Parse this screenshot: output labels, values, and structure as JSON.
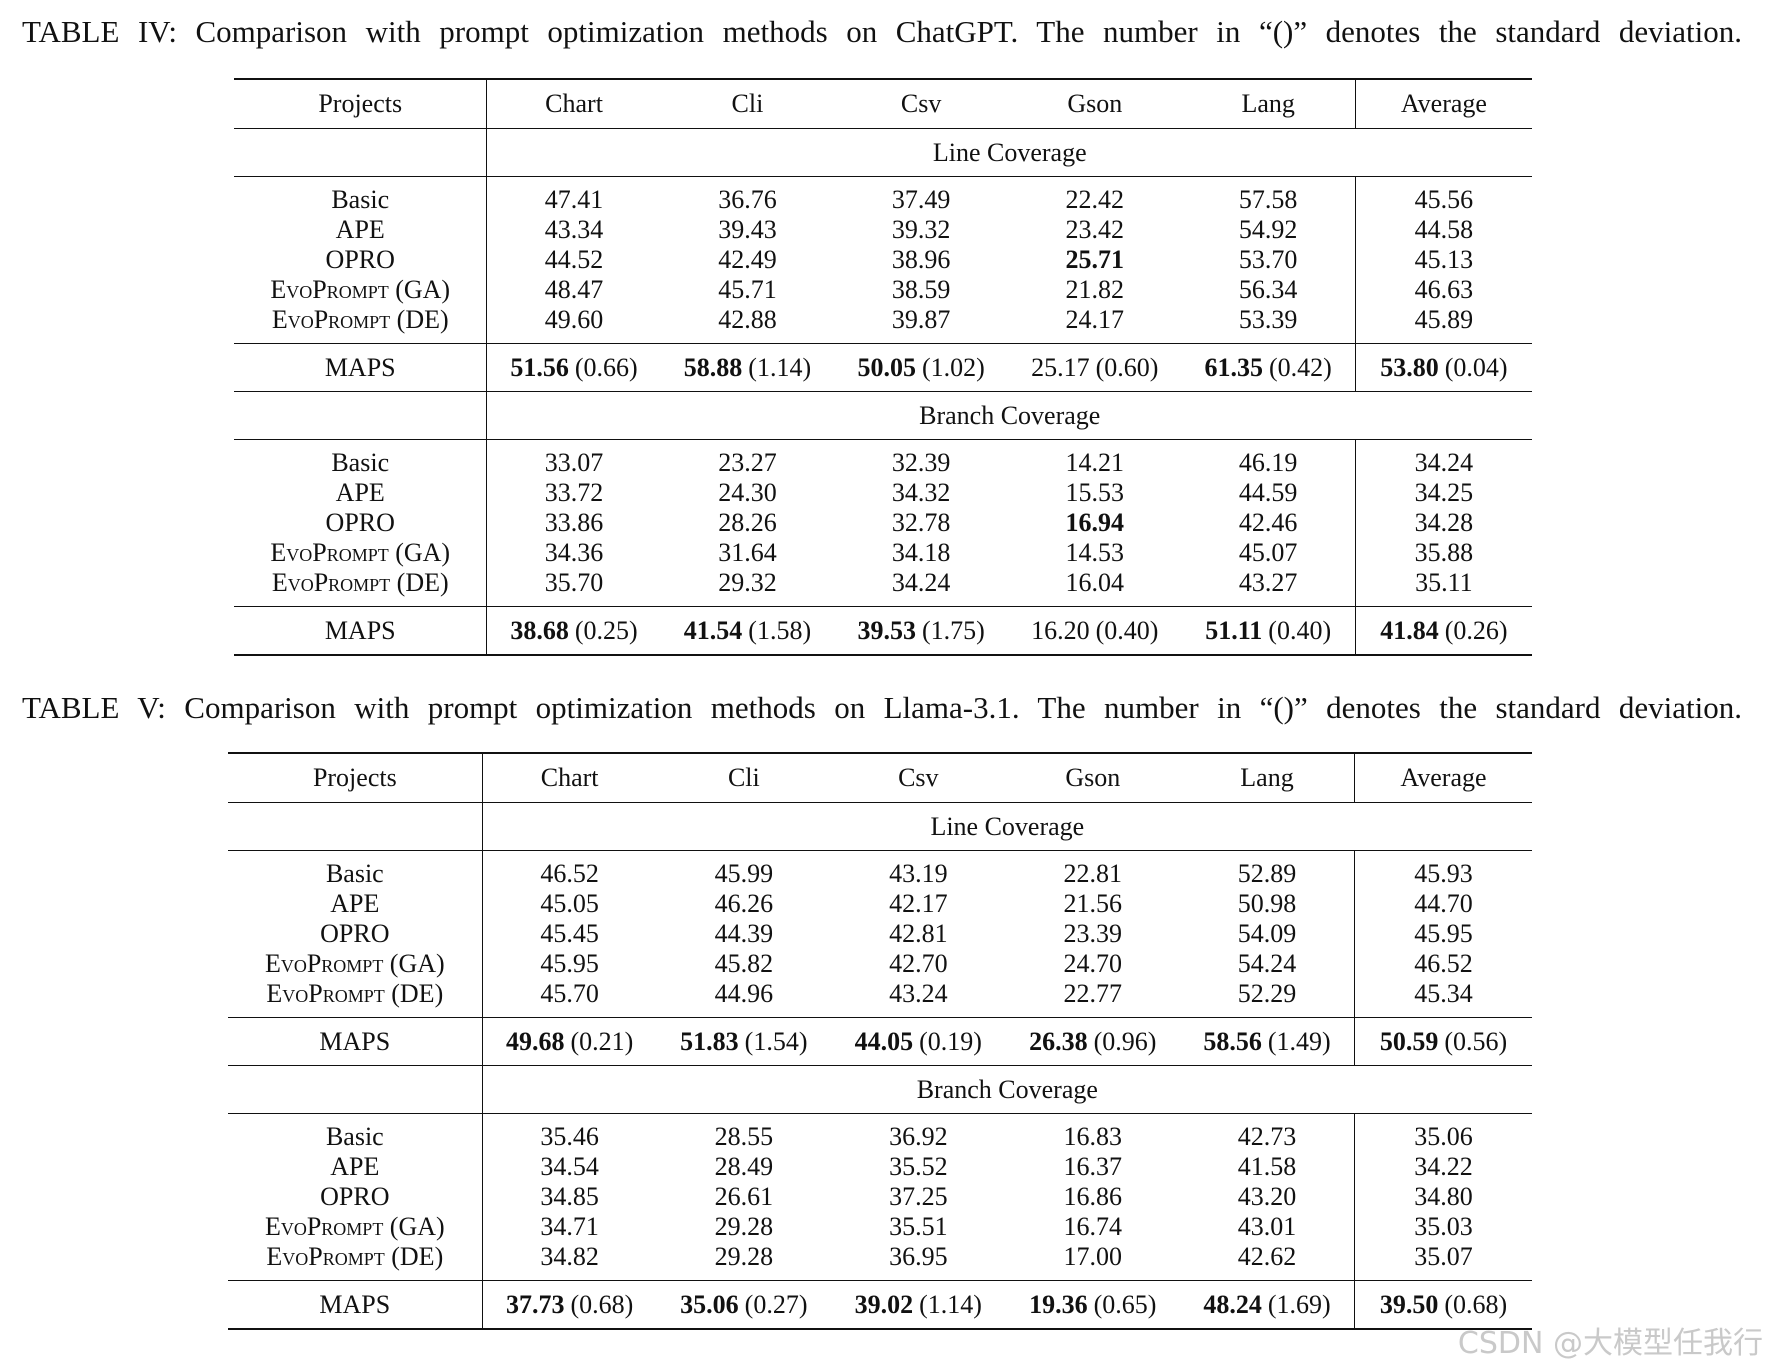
{
  "tables": [
    {
      "caption": "TABLE IV: Comparison with prompt optimization methods on ChatGPT. The number in “()” denotes the standard deviation.",
      "columns": [
        "Projects",
        "Chart",
        "Cli",
        "Csv",
        "Gson",
        "Lang",
        "Average"
      ],
      "sections": [
        {
          "title": "Line Coverage",
          "rows": [
            {
              "method": "Basic",
              "values": [
                "47.41",
                "36.76",
                "37.49",
                "22.42",
                "57.58",
                "45.56"
              ],
              "bold": []
            },
            {
              "method": "APE",
              "values": [
                "43.34",
                "39.43",
                "39.32",
                "23.42",
                "54.92",
                "44.58"
              ],
              "bold": []
            },
            {
              "method": "OPRO",
              "values": [
                "44.52",
                "42.49",
                "38.96",
                "25.71",
                "53.70",
                "45.13"
              ],
              "bold": [
                3
              ]
            },
            {
              "method": "EvoPrompt (GA)",
              "values": [
                "48.47",
                "45.71",
                "38.59",
                "21.82",
                "56.34",
                "46.63"
              ],
              "bold": []
            },
            {
              "method": "EvoPrompt (DE)",
              "values": [
                "49.60",
                "42.88",
                "39.87",
                "24.17",
                "53.39",
                "45.89"
              ],
              "bold": []
            }
          ],
          "maps": {
            "method": "MAPS",
            "values": [
              "51.56",
              "58.88",
              "50.05",
              "25.17",
              "61.35",
              "53.80"
            ],
            "sd": [
              "(0.66)",
              "(1.14)",
              "(1.02)",
              "(0.60)",
              "(0.42)",
              "(0.04)"
            ],
            "bold": [
              0,
              1,
              2,
              4,
              5
            ]
          }
        },
        {
          "title": "Branch Coverage",
          "rows": [
            {
              "method": "Basic",
              "values": [
                "33.07",
                "23.27",
                "32.39",
                "14.21",
                "46.19",
                "34.24"
              ],
              "bold": []
            },
            {
              "method": "APE",
              "values": [
                "33.72",
                "24.30",
                "34.32",
                "15.53",
                "44.59",
                "34.25"
              ],
              "bold": []
            },
            {
              "method": "OPRO",
              "values": [
                "33.86",
                "28.26",
                "32.78",
                "16.94",
                "42.46",
                "34.28"
              ],
              "bold": [
                3
              ]
            },
            {
              "method": "EvoPrompt (GA)",
              "values": [
                "34.36",
                "31.64",
                "34.18",
                "14.53",
                "45.07",
                "35.88"
              ],
              "bold": []
            },
            {
              "method": "EvoPrompt (DE)",
              "values": [
                "35.70",
                "29.32",
                "34.24",
                "16.04",
                "43.27",
                "35.11"
              ],
              "bold": []
            }
          ],
          "maps": {
            "method": "MAPS",
            "values": [
              "38.68",
              "41.54",
              "39.53",
              "16.20",
              "51.11",
              "41.84"
            ],
            "sd": [
              "(0.25)",
              "(1.58)",
              "(1.75)",
              "(0.40)",
              "(0.40)",
              "(0.26)"
            ],
            "bold": [
              0,
              1,
              2,
              4,
              5
            ]
          }
        }
      ]
    },
    {
      "caption": "TABLE V: Comparison with prompt optimization methods on Llama-3.1. The number in “()” denotes the standard deviation.",
      "columns": [
        "Projects",
        "Chart",
        "Cli",
        "Csv",
        "Gson",
        "Lang",
        "Average"
      ],
      "sections": [
        {
          "title": "Line Coverage",
          "rows": [
            {
              "method": "Basic",
              "values": [
                "46.52",
                "45.99",
                "43.19",
                "22.81",
                "52.89",
                "45.93"
              ],
              "bold": []
            },
            {
              "method": "APE",
              "values": [
                "45.05",
                "46.26",
                "42.17",
                "21.56",
                "50.98",
                "44.70"
              ],
              "bold": []
            },
            {
              "method": "OPRO",
              "values": [
                "45.45",
                "44.39",
                "42.81",
                "23.39",
                "54.09",
                "45.95"
              ],
              "bold": []
            },
            {
              "method": "EvoPrompt (GA)",
              "values": [
                "45.95",
                "45.82",
                "42.70",
                "24.70",
                "54.24",
                "46.52"
              ],
              "bold": []
            },
            {
              "method": "EvoPrompt (DE)",
              "values": [
                "45.70",
                "44.96",
                "43.24",
                "22.77",
                "52.29",
                "45.34"
              ],
              "bold": []
            }
          ],
          "maps": {
            "method": "MAPS",
            "values": [
              "49.68",
              "51.83",
              "44.05",
              "26.38",
              "58.56",
              "50.59"
            ],
            "sd": [
              "(0.21)",
              "(1.54)",
              "(0.19)",
              "(0.96)",
              "(1.49)",
              "(0.56)"
            ],
            "bold": [
              0,
              1,
              2,
              3,
              4,
              5
            ]
          }
        },
        {
          "title": "Branch Coverage",
          "rows": [
            {
              "method": "Basic",
              "values": [
                "35.46",
                "28.55",
                "36.92",
                "16.83",
                "42.73",
                "35.06"
              ],
              "bold": []
            },
            {
              "method": "APE",
              "values": [
                "34.54",
                "28.49",
                "35.52",
                "16.37",
                "41.58",
                "34.22"
              ],
              "bold": []
            },
            {
              "method": "OPRO",
              "values": [
                "34.85",
                "26.61",
                "37.25",
                "16.86",
                "43.20",
                "34.80"
              ],
              "bold": []
            },
            {
              "method": "EvoPrompt (GA)",
              "values": [
                "34.71",
                "29.28",
                "35.51",
                "16.74",
                "43.01",
                "35.03"
              ],
              "bold": []
            },
            {
              "method": "EvoPrompt (DE)",
              "values": [
                "34.82",
                "29.28",
                "36.95",
                "17.00",
                "42.62",
                "35.07"
              ],
              "bold": []
            }
          ],
          "maps": {
            "method": "MAPS",
            "values": [
              "37.73",
              "35.06",
              "39.02",
              "19.36",
              "48.24",
              "39.50"
            ],
            "sd": [
              "(0.68)",
              "(0.27)",
              "(1.14)",
              "(0.65)",
              "(1.69)",
              "(0.68)"
            ],
            "bold": [
              0,
              1,
              2,
              3,
              4,
              5
            ]
          }
        }
      ]
    }
  ],
  "watermark": "CSDN @大模型任我行"
}
